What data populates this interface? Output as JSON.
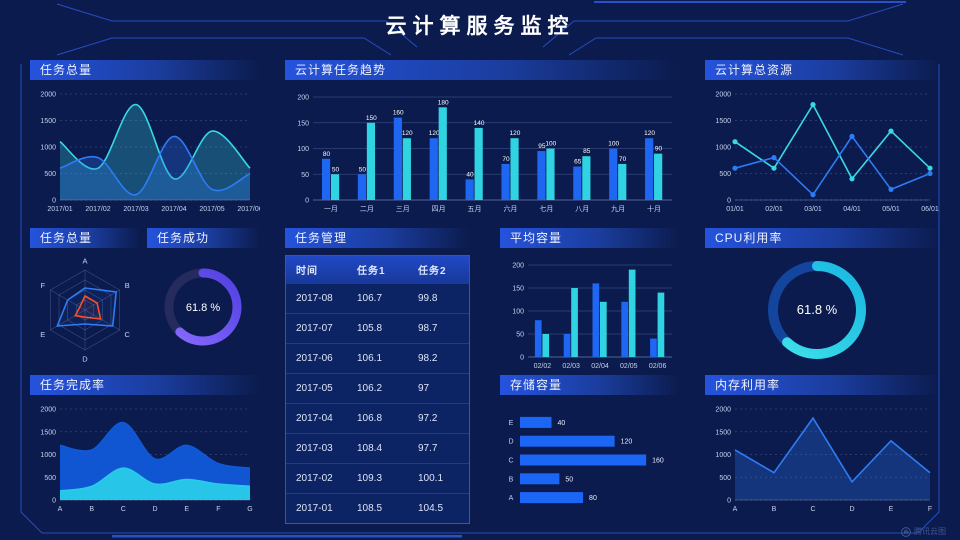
{
  "header": {
    "title": "云计算服务监控"
  },
  "watermark": {
    "text": "腾讯云图"
  },
  "colors": {
    "blue": "#1f66f2",
    "cyan": "#2fd3e2",
    "purple": "#7a5cff",
    "red": "#f4502e",
    "axis_text": "#c7d2ef",
    "accent_line": "#2b57d5",
    "background": "#0b1b4d"
  },
  "panels": {
    "tasks_total_line": {
      "title": "任务总量"
    },
    "task_trend": {
      "title": "云计算任务趋势"
    },
    "total_resources": {
      "title": "云计算总资源"
    },
    "tasks_total_radar": {
      "title": "任务总量"
    },
    "task_success": {
      "title": "任务成功"
    },
    "task_management": {
      "title": "任务管理"
    },
    "avg_capacity": {
      "title": "平均容量"
    },
    "cpu_usage": {
      "title": "CPU利用率"
    },
    "task_completion": {
      "title": "任务完成率"
    },
    "storage_capacity": {
      "title": "存储容量"
    },
    "memory_usage": {
      "title": "内存利用率"
    }
  },
  "chart_data": [
    {
      "id": "tasks_total_line",
      "type": "line",
      "title": "任务总量",
      "smooth": true,
      "area": true,
      "x": [
        "2017/01",
        "2017/02",
        "2017/03",
        "2017/04",
        "2017/05",
        "2017/06"
      ],
      "ylim": [
        0,
        2000
      ],
      "yticks": [
        0,
        500,
        1000,
        1500,
        2000
      ],
      "series": [
        {
          "color": "#38d8e6",
          "values": [
            1100,
            600,
            1800,
            400,
            1300,
            600
          ]
        },
        {
          "color": "#2e7bf6",
          "values": [
            600,
            800,
            100,
            1200,
            200,
            500
          ]
        }
      ]
    },
    {
      "id": "task_trend",
      "type": "bar",
      "title": "云计算任务趋势",
      "x": [
        "一月",
        "二月",
        "三月",
        "四月",
        "五月",
        "六月",
        "七月",
        "八月",
        "九月",
        "十月"
      ],
      "ylim": [
        0,
        200
      ],
      "yticks": [
        0,
        50,
        100,
        150,
        200
      ],
      "show_values": true,
      "series": [
        {
          "color": "#1f66f2",
          "values": [
            80,
            50,
            160,
            120,
            40,
            70,
            95,
            65,
            100,
            120
          ]
        },
        {
          "color": "#2fd3e2",
          "values": [
            50,
            150,
            120,
            180,
            140,
            120,
            100,
            85,
            70,
            90
          ]
        }
      ]
    },
    {
      "id": "total_resources",
      "type": "line",
      "title": "云计算总资源",
      "smooth": false,
      "markers": true,
      "x": [
        "01/01",
        "02/01",
        "03/01",
        "04/01",
        "05/01",
        "06/01"
      ],
      "ylim": [
        0,
        2000
      ],
      "yticks": [
        0,
        500,
        1000,
        1500,
        2000
      ],
      "series": [
        {
          "color": "#38d8e6",
          "values": [
            1100,
            600,
            1800,
            400,
            1300,
            600
          ]
        },
        {
          "color": "#2e7bf6",
          "values": [
            600,
            800,
            100,
            1200,
            200,
            500
          ]
        }
      ]
    },
    {
      "id": "tasks_total_radar",
      "type": "radar",
      "title": "任务总量",
      "axes": [
        "A",
        "B",
        "C",
        "D",
        "E",
        "F"
      ],
      "max": 100,
      "series": [
        {
          "color": "#2e7bf6",
          "values": [
            55,
            90,
            80,
            35,
            80,
            50
          ]
        },
        {
          "color": "#f4502e",
          "values": [
            35,
            35,
            45,
            18,
            28,
            15
          ]
        }
      ]
    },
    {
      "id": "task_success_gauge",
      "type": "donut",
      "title": "任务成功",
      "value": 61.8,
      "label": "61.8 %",
      "colors": [
        "#8a6bff",
        "#4f3fe0"
      ],
      "track": "#262b5e"
    },
    {
      "id": "task_management",
      "type": "table",
      "title": "任务管理",
      "headers": [
        "时间",
        "任务1",
        "任务2"
      ],
      "rows": [
        [
          "2017-08",
          "106.7",
          "99.8"
        ],
        [
          "2017-07",
          "105.8",
          "98.7"
        ],
        [
          "2017-06",
          "106.1",
          "98.2"
        ],
        [
          "2017-05",
          "106.2",
          "97"
        ],
        [
          "2017-04",
          "106.8",
          "97.2"
        ],
        [
          "2017-03",
          "108.4",
          "97.7"
        ],
        [
          "2017-02",
          "109.3",
          "100.1"
        ],
        [
          "2017-01",
          "108.5",
          "104.5"
        ]
      ]
    },
    {
      "id": "avg_capacity",
      "type": "bar",
      "title": "平均容量",
      "x": [
        "02/02",
        "02/03",
        "02/04",
        "02/05",
        "02/06"
      ],
      "ylim": [
        0,
        200
      ],
      "yticks": [
        0,
        50,
        100,
        150,
        200
      ],
      "show_values": false,
      "series": [
        {
          "color": "#1f66f2",
          "values": [
            80,
            50,
            160,
            120,
            40
          ]
        },
        {
          "color": "#2fd3e2",
          "values": [
            50,
            150,
            120,
            190,
            140
          ]
        }
      ]
    },
    {
      "id": "cpu_gauge",
      "type": "donut",
      "title": "CPU利用率",
      "value": 61.8,
      "label": "61.8 %",
      "colors": [
        "#3fe3ea",
        "#18b6e0"
      ],
      "track": "#14459e"
    },
    {
      "id": "task_completion",
      "type": "area",
      "title": "任务完成率",
      "smooth": true,
      "x": [
        "A",
        "B",
        "C",
        "D",
        "E",
        "F",
        "G"
      ],
      "ylim": [
        0,
        2000
      ],
      "yticks": [
        0,
        500,
        1000,
        1500,
        2000
      ],
      "series": [
        {
          "color": "#1159d8",
          "fill": "#1159d8",
          "values": [
            1200,
            1100,
            1700,
            900,
            1200,
            800,
            700
          ]
        },
        {
          "color": "#29cbe8",
          "fill": "#29cbe8",
          "values": [
            200,
            300,
            700,
            350,
            450,
            350,
            300
          ]
        }
      ]
    },
    {
      "id": "storage_capacity",
      "type": "hbar",
      "title": "存储容量",
      "categories": [
        "E",
        "D",
        "C",
        "B",
        "A"
      ],
      "values": [
        40,
        120,
        160,
        50,
        80
      ],
      "xmax": 170,
      "color": "#1b66f5",
      "show_values": true
    },
    {
      "id": "memory_usage",
      "type": "line",
      "title": "内存利用率",
      "smooth": false,
      "area": true,
      "markers": false,
      "x": [
        "A",
        "B",
        "C",
        "D",
        "E",
        "F"
      ],
      "ylim": [
        0,
        2000
      ],
      "yticks": [
        0,
        500,
        1000,
        1500,
        2000
      ],
      "series": [
        {
          "color": "#2e7bf6",
          "values": [
            1100,
            600,
            1800,
            400,
            1300,
            600
          ]
        }
      ]
    }
  ]
}
